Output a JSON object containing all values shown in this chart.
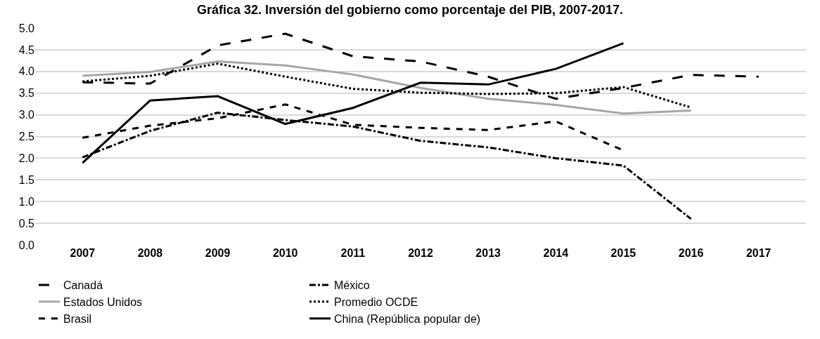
{
  "chart_data": {
    "type": "line",
    "title": "Gráfica 32. Inversión del gobierno como porcentaje del PIB, 2007-2017.",
    "categories": [
      "2007",
      "2008",
      "2009",
      "2010",
      "2011",
      "2012",
      "2013",
      "2014",
      "2015",
      "2016",
      "2017"
    ],
    "ylim": [
      0,
      5
    ],
    "yticks": [
      {
        "value": 0,
        "label": "0.0"
      },
      {
        "value": 0.5,
        "label": "0.5"
      },
      {
        "value": 1,
        "label": "1.0"
      },
      {
        "value": 1.5,
        "label": "1.5"
      },
      {
        "value": 2,
        "label": "2.0"
      },
      {
        "value": 2.5,
        "label": "2.5"
      },
      {
        "value": 3,
        "label": "3.0"
      },
      {
        "value": 3.5,
        "label": "3.5"
      },
      {
        "value": 4,
        "label": "4.0"
      },
      {
        "value": 4.5,
        "label": "4.5"
      },
      {
        "value": 5,
        "label": "5.0"
      }
    ],
    "grid": "y",
    "legend": "bottom",
    "marker": "none",
    "series": [
      {
        "name": "Canadá",
        "color": "#000000",
        "line_style": "longdash",
        "values": [
          3.75,
          3.72,
          4.6,
          4.87,
          4.35,
          4.23,
          3.88,
          3.37,
          3.62,
          3.92,
          3.88
        ]
      },
      {
        "name": "México",
        "color": "#000000",
        "line_style": "dashdot",
        "values": [
          2.02,
          2.63,
          3.05,
          2.88,
          2.73,
          2.4,
          2.25,
          2.0,
          1.83,
          0.6,
          null
        ]
      },
      {
        "name": "Estados Unidos",
        "color": "#a6a6a6",
        "line_style": "solid",
        "values": [
          3.9,
          3.99,
          4.23,
          4.14,
          3.93,
          3.62,
          3.37,
          3.23,
          3.03,
          3.1,
          null
        ]
      },
      {
        "name": "Promedio OCDE",
        "color": "#000000",
        "line_style": "dotted",
        "values": [
          3.77,
          3.9,
          4.18,
          3.88,
          3.6,
          3.51,
          3.48,
          3.5,
          3.64,
          3.17,
          null
        ]
      },
      {
        "name": "Brasil",
        "color": "#000000",
        "line_style": "dashed",
        "values": [
          2.47,
          2.75,
          2.92,
          3.24,
          2.77,
          2.7,
          2.65,
          2.85,
          2.18,
          null,
          null
        ]
      },
      {
        "name": "China (República popular de)",
        "color": "#000000",
        "line_style": "solid",
        "values": [
          1.89,
          3.33,
          3.43,
          2.79,
          3.16,
          3.74,
          3.7,
          4.06,
          4.65,
          null,
          null
        ]
      }
    ]
  }
}
